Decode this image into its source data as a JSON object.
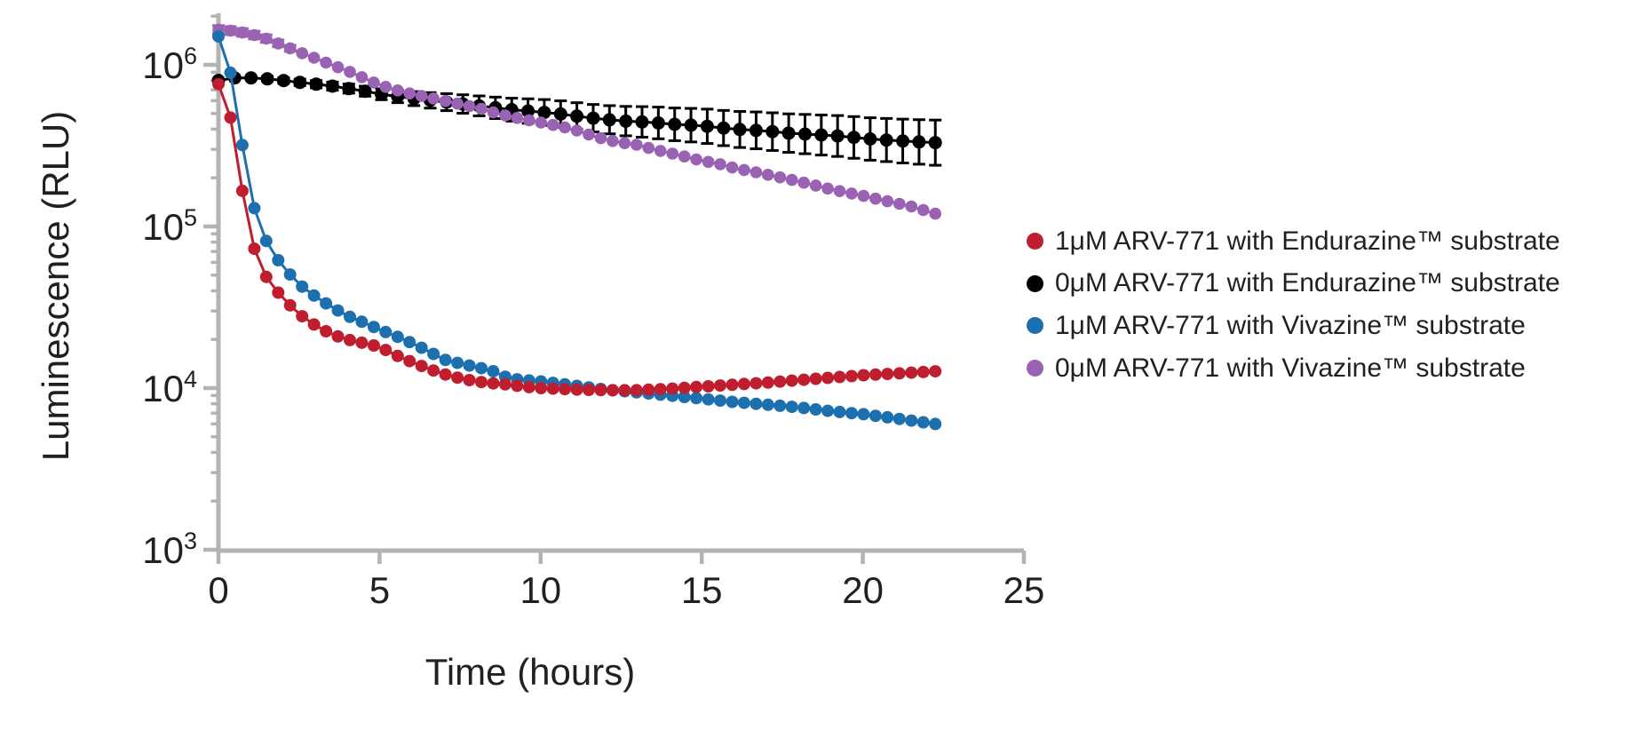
{
  "figure": {
    "background": "#ffffff",
    "text_color": "#231f20",
    "axis_color": "#b3b3b3"
  },
  "chart_data": {
    "type": "line",
    "title": "",
    "xlabel": "Time (hours)",
    "ylabel": "Luminescence (RLU)",
    "x_axis": {
      "min": 0,
      "max": 25,
      "ticks": [
        0,
        5,
        10,
        15,
        20,
        25
      ]
    },
    "y_axis": {
      "scale": "log",
      "tick_exponents": [
        3,
        4,
        5,
        6
      ],
      "min_value": 1000,
      "top_value": 2100000
    },
    "duration_hours": 22.25,
    "legend_position": "right",
    "grid": false,
    "series": [
      {
        "id": "arv771-1um-endurazine",
        "label": "1μM ARV-771 with Endurazine™ substrate",
        "color": "#be1e2d",
        "marker_r": 7,
        "marker_step_h": 0.3708,
        "points": [
          [
            0,
            760000
          ],
          [
            0.33,
            530000
          ],
          [
            0.67,
            200000
          ],
          [
            1,
            85000
          ],
          [
            1.33,
            54000
          ],
          [
            1.67,
            43000
          ],
          [
            2,
            36000
          ],
          [
            2.33,
            31000
          ],
          [
            2.67,
            27000
          ],
          [
            3,
            24500
          ],
          [
            3.33,
            22500
          ],
          [
            3.67,
            21000
          ],
          [
            4,
            20000
          ],
          [
            4.5,
            19000
          ],
          [
            5,
            18000
          ],
          [
            5.5,
            16000
          ],
          [
            6,
            14500
          ],
          [
            6.5,
            13200
          ],
          [
            7,
            12200
          ],
          [
            7.5,
            11500
          ],
          [
            8,
            11000
          ],
          [
            8.5,
            10700
          ],
          [
            9,
            10500
          ],
          [
            9.5,
            10200
          ],
          [
            10,
            10000
          ],
          [
            11,
            9800
          ],
          [
            12,
            9700
          ],
          [
            13,
            9700
          ],
          [
            14,
            9900
          ],
          [
            15,
            10200
          ],
          [
            16,
            10500
          ],
          [
            17,
            10800
          ],
          [
            18,
            11200
          ],
          [
            19,
            11600
          ],
          [
            20,
            12000
          ],
          [
            21,
            12300
          ],
          [
            22.25,
            12700
          ]
        ],
        "error_frac": []
      },
      {
        "id": "arv771-0um-endurazine",
        "label": "0μM ARV-771 with Endurazine™ substrate",
        "color": "#000000",
        "marker_r": 7.5,
        "marker_step_h": 0.5057,
        "points": [
          [
            0,
            800000
          ],
          [
            0.5,
            830000
          ],
          [
            1,
            830000
          ],
          [
            1.5,
            820000
          ],
          [
            2,
            800000
          ],
          [
            2.5,
            780000
          ],
          [
            3,
            760000
          ],
          [
            3.5,
            740000
          ],
          [
            4,
            715000
          ],
          [
            4.5,
            690000
          ],
          [
            5,
            660000
          ],
          [
            5.5,
            640000
          ],
          [
            6,
            620000
          ],
          [
            6.5,
            605000
          ],
          [
            7,
            590000
          ],
          [
            7.5,
            575000
          ],
          [
            8,
            560000
          ],
          [
            8.5,
            545000
          ],
          [
            9,
            530000
          ],
          [
            9.5,
            520000
          ],
          [
            10,
            510000
          ],
          [
            10.5,
            500000
          ],
          [
            11,
            485000
          ],
          [
            11.5,
            470000
          ],
          [
            12,
            460000
          ],
          [
            12.5,
            450000
          ],
          [
            13,
            445000
          ],
          [
            13.5,
            440000
          ],
          [
            14,
            430000
          ],
          [
            14.5,
            425000
          ],
          [
            15,
            420000
          ],
          [
            15.5,
            410000
          ],
          [
            16,
            400000
          ],
          [
            16.5,
            395000
          ],
          [
            17,
            390000
          ],
          [
            17.5,
            380000
          ],
          [
            18,
            375000
          ],
          [
            18.5,
            370000
          ],
          [
            19,
            365000
          ],
          [
            19.5,
            360000
          ],
          [
            20,
            350000
          ],
          [
            20.5,
            345000
          ],
          [
            21,
            340000
          ],
          [
            21.5,
            335000
          ],
          [
            22.25,
            330000
          ]
        ],
        "error_frac": [
          [
            0,
            0.02
          ],
          [
            2,
            0.04
          ],
          [
            5,
            0.08
          ],
          [
            8,
            0.15
          ],
          [
            10,
            0.2
          ],
          [
            12,
            0.22
          ],
          [
            14,
            0.26
          ],
          [
            16,
            0.29
          ],
          [
            18,
            0.32
          ],
          [
            20,
            0.35
          ],
          [
            22.25,
            0.38
          ]
        ]
      },
      {
        "id": "arv771-1um-vivazine",
        "label": "1μM ARV-771 with Vivazine™ substrate",
        "color": "#1c70ad",
        "marker_r": 7,
        "marker_step_h": 0.3708,
        "points": [
          [
            0,
            1500000
          ],
          [
            0.33,
            1000000
          ],
          [
            0.67,
            390000
          ],
          [
            1,
            155000
          ],
          [
            1.33,
            92000
          ],
          [
            1.67,
            70000
          ],
          [
            2,
            56000
          ],
          [
            2.33,
            48000
          ],
          [
            2.67,
            41000
          ],
          [
            3,
            37000
          ],
          [
            3.33,
            33500
          ],
          [
            3.67,
            30500
          ],
          [
            4,
            28000
          ],
          [
            4.5,
            25500
          ],
          [
            5,
            23000
          ],
          [
            5.5,
            21000
          ],
          [
            6,
            19000
          ],
          [
            6.5,
            17000
          ],
          [
            7,
            15000
          ],
          [
            7.5,
            14200
          ],
          [
            8,
            13500
          ],
          [
            8.5,
            12800
          ],
          [
            9,
            11500
          ],
          [
            9.5,
            11200
          ],
          [
            10,
            11000
          ],
          [
            10.5,
            10700
          ],
          [
            11,
            10400
          ],
          [
            11.5,
            10100
          ],
          [
            12,
            9800
          ],
          [
            13,
            9400
          ],
          [
            14,
            9000
          ],
          [
            15,
            8600
          ],
          [
            16,
            8200
          ],
          [
            17,
            7900
          ],
          [
            18,
            7600
          ],
          [
            19,
            7200
          ],
          [
            20,
            6900
          ],
          [
            21,
            6500
          ],
          [
            22.25,
            6000
          ]
        ],
        "error_frac": []
      },
      {
        "id": "arv771-0um-vivazine",
        "label": "0μM ARV-771 with Vivazine™ substrate",
        "color": "#9a62b3",
        "marker_r": 6.8,
        "marker_step_h": 0.3708,
        "points": [
          [
            0,
            1650000
          ],
          [
            0.5,
            1620000
          ],
          [
            1,
            1550000
          ],
          [
            1.5,
            1450000
          ],
          [
            2,
            1320000
          ],
          [
            2.5,
            1200000
          ],
          [
            3,
            1100000
          ],
          [
            3.5,
            1000000
          ],
          [
            4,
            920000
          ],
          [
            4.5,
            830000
          ],
          [
            5,
            750000
          ],
          [
            5.5,
            700000
          ],
          [
            6,
            660000
          ],
          [
            6.5,
            630000
          ],
          [
            7,
            600000
          ],
          [
            7.5,
            570000
          ],
          [
            8,
            545000
          ],
          [
            8.5,
            510000
          ],
          [
            9,
            480000
          ],
          [
            9.5,
            460000
          ],
          [
            10,
            440000
          ],
          [
            10.5,
            420000
          ],
          [
            11,
            400000
          ],
          [
            11.5,
            370000
          ],
          [
            12,
            345000
          ],
          [
            12.5,
            330000
          ],
          [
            13,
            320000
          ],
          [
            13.5,
            300000
          ],
          [
            14,
            285000
          ],
          [
            14.5,
            270000
          ],
          [
            15,
            255000
          ],
          [
            15.5,
            245000
          ],
          [
            16,
            230000
          ],
          [
            16.5,
            220000
          ],
          [
            17,
            210000
          ],
          [
            17.5,
            200000
          ],
          [
            18,
            190000
          ],
          [
            18.5,
            180000
          ],
          [
            19,
            170000
          ],
          [
            19.5,
            162000
          ],
          [
            20,
            155000
          ],
          [
            20.5,
            147000
          ],
          [
            21,
            140000
          ],
          [
            21.5,
            133000
          ],
          [
            22.25,
            120000
          ]
        ],
        "error_frac": [
          [
            0,
            0.06
          ],
          [
            1.5,
            0.055
          ],
          [
            2.5,
            0.04
          ],
          [
            3,
            0.01
          ]
        ]
      }
    ]
  }
}
